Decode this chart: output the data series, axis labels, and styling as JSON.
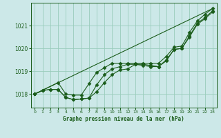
{
  "bg_color": "#cce8e8",
  "grid_color": "#99ccbb",
  "line_color": "#1a5c1a",
  "xlabel": "Graphe pression niveau de la mer (hPa)",
  "ylim": [
    1017.4,
    1022.0
  ],
  "xlim": [
    -0.5,
    23.5
  ],
  "yticks": [
    1018,
    1019,
    1020,
    1021
  ],
  "xticks": [
    0,
    1,
    2,
    3,
    4,
    5,
    6,
    7,
    8,
    9,
    10,
    11,
    12,
    13,
    14,
    15,
    16,
    17,
    18,
    19,
    20,
    21,
    22,
    23
  ],
  "series": [
    {
      "x": [
        0,
        1,
        2,
        3,
        4,
        5,
        6,
        7,
        8,
        9,
        10,
        11,
        12,
        13,
        14,
        15,
        16,
        17,
        18,
        19,
        20,
        21,
        22,
        23
      ],
      "y": [
        1018.0,
        1018.15,
        1018.2,
        1018.2,
        1017.85,
        1017.75,
        1017.78,
        1017.82,
        1018.1,
        1018.5,
        1018.85,
        1019.05,
        1019.1,
        1019.3,
        1019.3,
        1019.25,
        1019.2,
        1019.45,
        1019.95,
        1020.0,
        1020.5,
        1021.05,
        1021.3,
        1021.6
      ]
    },
    {
      "x": [
        0,
        1,
        2,
        3,
        4,
        5,
        6,
        7,
        8,
        9,
        10,
        11,
        12,
        13,
        14,
        15,
        16,
        17,
        18,
        19,
        20,
        21,
        22,
        23
      ],
      "y": [
        1018.0,
        1018.15,
        1018.2,
        1018.2,
        1017.85,
        1017.75,
        1017.78,
        1017.82,
        1018.4,
        1018.85,
        1019.1,
        1019.2,
        1019.3,
        1019.3,
        1019.25,
        1019.2,
        1019.2,
        1019.5,
        1019.95,
        1020.0,
        1020.55,
        1021.1,
        1021.35,
        1021.65
      ]
    },
    {
      "x": [
        0,
        3,
        4,
        5,
        6,
        7,
        8,
        9,
        10,
        11,
        12,
        13,
        14,
        15,
        16,
        17,
        18,
        19,
        20,
        21,
        22,
        23
      ],
      "y": [
        1018.0,
        1018.5,
        1018.0,
        1017.95,
        1017.95,
        1018.45,
        1018.95,
        1019.15,
        1019.35,
        1019.35,
        1019.35,
        1019.35,
        1019.35,
        1019.35,
        1019.35,
        1019.65,
        1020.05,
        1020.1,
        1020.7,
        1021.2,
        1021.5,
        1021.75
      ]
    },
    {
      "x": [
        0,
        23
      ],
      "y": [
        1018.0,
        1021.75
      ]
    }
  ],
  "has_markers": [
    true,
    true,
    true,
    false
  ]
}
